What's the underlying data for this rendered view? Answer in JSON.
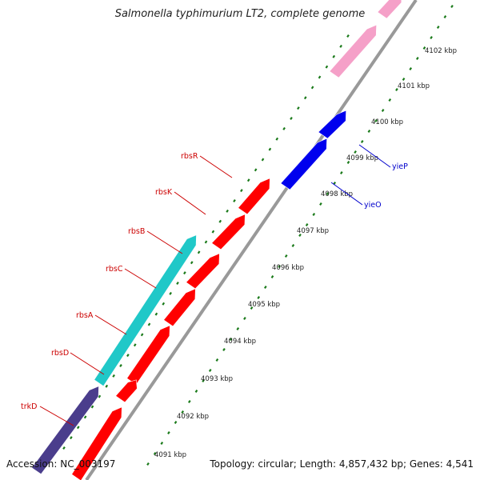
{
  "title": "Salmonella typhimurium LT2, complete genome",
  "footer": {
    "accession": "Accession: NC_003197",
    "summary": "Topology: circular; Length: 4,857,432 bp; Genes: 4,541"
  },
  "colors": {
    "backbone": "#999999",
    "tick": "#1a7a1a",
    "label_red": "#cc0000",
    "label_blue": "#0000cc",
    "red": "#ff0000",
    "blue": "#0000ee",
    "pink": "#f5a0c8",
    "cyan": "#20c8c8",
    "navy": "#4a3d8c"
  },
  "scale_labels": [
    "4091 kbp",
    "4092 kbp",
    "4093 kbp",
    "4094 kbp",
    "4095 kbp",
    "4096 kbp",
    "4097 kbp",
    "4098 kbp",
    "4099 kbp",
    "4100 kbp",
    "4101 kbp",
    "4102 kbp"
  ],
  "genes_left": [
    "trkD",
    "rbsD",
    "rbsA",
    "rbsC",
    "rbsB",
    "rbsK",
    "rbsR"
  ],
  "genes_right": [
    "yieO",
    "yieP"
  ]
}
